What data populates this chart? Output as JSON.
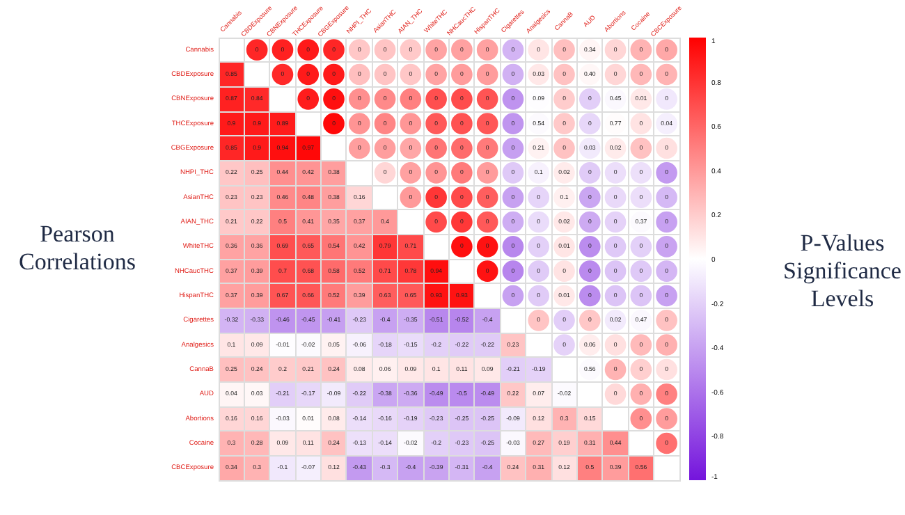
{
  "chart_data": {
    "type": "heatmap",
    "ylabel": "Pearson Correlations",
    "y2label": "P-Values Significance Levels",
    "categories": [
      "Cannabis",
      "CBDExposure",
      "CBNExposure",
      "THCExposure",
      "CBGExposure",
      "NHPI_THC",
      "AsianTHC",
      "AIAN_THC",
      "WhiteTHC",
      "NHCaucTHC",
      "HispanTHC",
      "Cigarettes",
      "Analgesics",
      "CannaB",
      "AUD",
      "Abortions",
      "Cocaine",
      "CBCExposure"
    ],
    "y_categories": [
      "Cannabis",
      "CBDExposure",
      "CBNExposure",
      "THCExposure",
      "CBGExposure",
      "NHPI_THC",
      "AsianTHC",
      "AIAN_THC",
      "WhiteTHC",
      "NHCaucTHC",
      "HispanTHC",
      "Cigarettes",
      "Analgesics",
      "CannaB",
      "AUD",
      "Abortions",
      "Cocaine",
      "CBCExposure"
    ],
    "cells": [
      [
        null,
        0.85,
        0.87,
        0.9,
        0.85,
        0.22,
        0.23,
        0.21,
        0.36,
        0.37,
        0.37,
        -0.32,
        0.1,
        0.25,
        0.04,
        0.16,
        0.3,
        0.34
      ],
      [
        0.85,
        null,
        0.84,
        0.9,
        0.9,
        0.25,
        0.23,
        0.22,
        0.36,
        0.39,
        0.39,
        -0.33,
        0.09,
        0.24,
        0.03,
        0.16,
        0.28,
        0.3
      ],
      [
        0.87,
        0.84,
        null,
        0.89,
        0.94,
        0.44,
        0.46,
        0.5,
        0.69,
        0.7,
        0.67,
        -0.46,
        -0.01,
        0.2,
        -0.21,
        -0.03,
        0.09,
        -0.1
      ],
      [
        0.9,
        0.9,
        0.89,
        null,
        0.97,
        0.42,
        0.48,
        0.41,
        0.65,
        0.68,
        0.66,
        -0.45,
        -0.02,
        0.21,
        -0.17,
        0.01,
        0.11,
        -0.07
      ],
      [
        0.85,
        0.9,
        0.94,
        0.97,
        null,
        0.38,
        0.38,
        0.35,
        0.54,
        0.58,
        0.52,
        -0.41,
        0.05,
        0.24,
        -0.09,
        0.08,
        0.24,
        0.12
      ],
      [
        0.22,
        0.25,
        0.44,
        0.42,
        0.38,
        null,
        0.16,
        0.37,
        0.42,
        0.52,
        0.39,
        -0.23,
        -0.06,
        0.08,
        -0.22,
        -0.14,
        -0.13,
        -0.43
      ],
      [
        0.23,
        0.23,
        0.46,
        0.48,
        0.38,
        0.16,
        null,
        0.4,
        0.79,
        0.71,
        0.63,
        -0.4,
        -0.18,
        0.06,
        -0.38,
        -0.16,
        -0.14,
        -0.3
      ],
      [
        0.21,
        0.22,
        0.5,
        0.41,
        0.35,
        0.37,
        0.4,
        null,
        0.71,
        0.78,
        0.65,
        -0.35,
        -0.15,
        0.09,
        -0.36,
        -0.19,
        -0.02,
        -0.4
      ],
      [
        0.36,
        0.36,
        0.69,
        0.65,
        0.54,
        0.42,
        0.79,
        0.71,
        null,
        0.94,
        0.93,
        -0.51,
        -0.2,
        0.1,
        -0.49,
        -0.23,
        -0.2,
        -0.39
      ],
      [
        0.37,
        0.39,
        0.7,
        0.68,
        0.58,
        0.52,
        0.71,
        0.78,
        0.94,
        null,
        0.93,
        -0.52,
        -0.22,
        0.11,
        -0.5,
        -0.25,
        -0.23,
        -0.31
      ],
      [
        0.37,
        0.39,
        0.67,
        0.66,
        0.52,
        0.39,
        0.63,
        0.65,
        0.93,
        0.93,
        null,
        -0.4,
        -0.22,
        0.09,
        -0.49,
        -0.25,
        -0.25,
        -0.4
      ],
      [
        -0.32,
        -0.33,
        -0.46,
        -0.45,
        -0.41,
        -0.23,
        -0.4,
        -0.35,
        -0.51,
        -0.52,
        -0.4,
        null,
        0.23,
        -0.21,
        0.22,
        -0.09,
        -0.03,
        0.24
      ],
      [
        0.1,
        0.09,
        -0.01,
        -0.02,
        0.05,
        -0.06,
        -0.18,
        -0.15,
        -0.2,
        -0.22,
        -0.22,
        0.23,
        null,
        -0.19,
        0.07,
        0.12,
        0.27,
        0.31
      ],
      [
        0.25,
        0.24,
        0.2,
        0.21,
        0.24,
        0.08,
        0.06,
        0.09,
        0.1,
        0.11,
        0.09,
        -0.21,
        -0.19,
        null,
        -0.02,
        0.3,
        0.19,
        0.12
      ],
      [
        0.04,
        0.03,
        -0.21,
        -0.17,
        -0.09,
        -0.22,
        -0.38,
        -0.36,
        -0.49,
        -0.5,
        -0.49,
        0.22,
        0.07,
        -0.02,
        null,
        0.15,
        0.31,
        0.5
      ],
      [
        0.16,
        0.16,
        -0.03,
        0.01,
        0.08,
        -0.14,
        -0.16,
        -0.19,
        -0.23,
        -0.25,
        -0.25,
        -0.09,
        0.12,
        0.3,
        0.15,
        null,
        0.44,
        0.39
      ],
      [
        0.3,
        0.28,
        0.09,
        0.11,
        0.24,
        -0.13,
        -0.14,
        -0.02,
        -0.2,
        -0.23,
        -0.25,
        -0.03,
        0.27,
        0.19,
        0.31,
        0.44,
        null,
        0.56
      ],
      [
        0.34,
        0.3,
        -0.1,
        -0.07,
        0.12,
        -0.43,
        -0.3,
        -0.4,
        -0.39,
        -0.31,
        -0.4,
        0.24,
        0.31,
        0.12,
        0.5,
        0.39,
        0.56,
        null
      ]
    ],
    "cell_labels": [
      [
        null,
        null,
        null,
        null,
        null,
        null,
        null,
        null,
        null,
        null,
        null,
        null,
        null,
        null,
        null,
        null,
        null,
        null
      ],
      [
        "0.85",
        null,
        null,
        null,
        null,
        null,
        null,
        null,
        null,
        null,
        null,
        null,
        null,
        null,
        null,
        null,
        null,
        null
      ],
      [
        "0.87",
        "0.84",
        null,
        null,
        null,
        null,
        null,
        null,
        null,
        null,
        null,
        null,
        null,
        null,
        null,
        null,
        null,
        null
      ],
      [
        "0.9",
        "0.9",
        "0.89",
        null,
        null,
        null,
        null,
        null,
        null,
        null,
        null,
        null,
        null,
        null,
        null,
        null,
        null,
        null
      ],
      [
        "0.85",
        "0.9",
        "0.94",
        "0.97",
        null,
        null,
        null,
        null,
        null,
        null,
        null,
        null,
        null,
        null,
        null,
        null,
        null,
        null
      ],
      [
        "0.22",
        "0.25",
        "0.44",
        "0.42",
        "0.38",
        null,
        null,
        null,
        null,
        null,
        null,
        null,
        null,
        null,
        null,
        null,
        null,
        null
      ],
      [
        "0.23",
        "0.23",
        "0.46",
        "0.48",
        "0.38",
        "0.16",
        null,
        null,
        null,
        null,
        null,
        null,
        null,
        null,
        null,
        null,
        null,
        null
      ],
      [
        "0.21",
        "0.22",
        "0.5",
        "0.41",
        "0.35",
        "0.37",
        "0.4",
        null,
        null,
        null,
        null,
        null,
        null,
        null,
        null,
        null,
        null,
        null
      ],
      [
        "0.36",
        "0.36",
        "0.69",
        "0.65",
        "0.54",
        "0.42",
        "0.79",
        "0.71",
        null,
        null,
        null,
        null,
        null,
        null,
        null,
        null,
        null,
        null
      ],
      [
        "0.37",
        "0.39",
        "0.7",
        "0.68",
        "0.58",
        "0.52",
        "0.71",
        "0.78",
        "0.94",
        null,
        null,
        null,
        null,
        null,
        null,
        null,
        null,
        null
      ],
      [
        "0.37",
        "0.39",
        "0.67",
        "0.66",
        "0.52",
        "0.39",
        "0.63",
        "0.65",
        "0.93",
        "0.93",
        null,
        null,
        null,
        null,
        null,
        null,
        null,
        null
      ],
      [
        "-0.32",
        "-0.33",
        "-0.46",
        "-0.45",
        "-0.41",
        "-0.23",
        "-0.4",
        "-0.35",
        "-0.51",
        "-0.52",
        "-0.4",
        null,
        null,
        null,
        null,
        null,
        null,
        null
      ],
      [
        "0.1",
        "0.09",
        "-0.01",
        "-0.02",
        "0.05",
        "-0.06",
        "-0.18",
        "-0.15",
        "-0.2",
        "-0.22",
        "-0.22",
        "0.23",
        null,
        null,
        null,
        null,
        null,
        null
      ],
      [
        "0.25",
        "0.24",
        "0.2",
        "0.21",
        "0.24",
        "0.08",
        "0.06",
        "0.09",
        "0.1",
        "0.11",
        "0.09",
        "-0.21",
        "-0.19",
        null,
        null,
        null,
        null,
        null
      ],
      [
        "0.04",
        "0.03",
        "-0.21",
        "-0.17",
        "-0.09",
        "-0.22",
        "-0.38",
        "-0.36",
        "-0.49",
        "-0.5",
        "-0.49",
        "0.22",
        "0.07",
        "-0.02",
        null,
        null,
        null,
        null
      ],
      [
        "0.16",
        "0.16",
        "-0.03",
        "0.01",
        "0.08",
        "-0.14",
        "-0.16",
        "-0.19",
        "-0.23",
        "-0.25",
        "-0.25",
        "-0.09",
        "0.12",
        "0.3",
        "0.15",
        null,
        null,
        null
      ],
      [
        "0.3",
        "0.28",
        "0.09",
        "0.11",
        "0.24",
        "-0.13",
        "-0.14",
        "-0.02",
        "-0.2",
        "-0.23",
        "-0.25",
        "-0.03",
        "0.27",
        "0.19",
        "0.31",
        "0.44",
        null,
        null
      ],
      [
        "0.34",
        "0.3",
        "-0.1",
        "-0.07",
        "0.12",
        "-0.43",
        "-0.3",
        "-0.4",
        "-0.39",
        "-0.31",
        "-0.4",
        "0.24",
        "0.31",
        "0.12",
        "0.5",
        "0.39",
        "0.56",
        null
      ]
    ],
    "annotations": [
      {
        "text": "0",
        "x": "CBDExposure",
        "y": "Cannabis"
      },
      {
        "text": "0",
        "x": "CBNExposure",
        "y": "Cannabis"
      },
      {
        "text": "0",
        "x": "THCExposure",
        "y": "Cannabis"
      },
      {
        "text": "0",
        "x": "CBGExposure",
        "y": "Cannabis"
      },
      {
        "text": "0",
        "x": "NHPI_THC",
        "y": "Cannabis"
      },
      {
        "text": "0",
        "x": "AsianTHC",
        "y": "Cannabis"
      },
      {
        "text": "0",
        "x": "AIAN_THC",
        "y": "Cannabis"
      },
      {
        "text": "0",
        "x": "WhiteTHC",
        "y": "Cannabis"
      },
      {
        "text": "0",
        "x": "NHCaucTHC",
        "y": "Cannabis"
      },
      {
        "text": "0",
        "x": "HispanTHC",
        "y": "Cannabis"
      },
      {
        "text": "0",
        "x": "Cigarettes",
        "y": "Cannabis"
      },
      {
        "text": "0",
        "x": "Analgesics",
        "y": "Cannabis"
      },
      {
        "text": "0",
        "x": "CannaB",
        "y": "Cannabis"
      },
      {
        "text": "0.34",
        "x": "AUD",
        "y": "Cannabis"
      },
      {
        "text": "0",
        "x": "Abortions",
        "y": "Cannabis"
      },
      {
        "text": "0",
        "x": "Cocaine",
        "y": "Cannabis"
      },
      {
        "text": "0",
        "x": "CBCExposure",
        "y": "Cannabis"
      },
      {
        "text": "0",
        "x": "CBNExposure",
        "y": "CBDExposure"
      },
      {
        "text": "0",
        "x": "THCExposure",
        "y": "CBDExposure"
      },
      {
        "text": "0",
        "x": "CBGExposure",
        "y": "CBDExposure"
      },
      {
        "text": "0",
        "x": "NHPI_THC",
        "y": "CBDExposure"
      },
      {
        "text": "0",
        "x": "AsianTHC",
        "y": "CBDExposure"
      },
      {
        "text": "0",
        "x": "AIAN_THC",
        "y": "CBDExposure"
      },
      {
        "text": "0",
        "x": "WhiteTHC",
        "y": "CBDExposure"
      },
      {
        "text": "0",
        "x": "NHCaucTHC",
        "y": "CBDExposure"
      },
      {
        "text": "0",
        "x": "HispanTHC",
        "y": "CBDExposure"
      },
      {
        "text": "0",
        "x": "Cigarettes",
        "y": "CBDExposure"
      },
      {
        "text": "0.03",
        "x": "Analgesics",
        "y": "CBDExposure"
      },
      {
        "text": "0",
        "x": "CannaB",
        "y": "CBDExposure"
      },
      {
        "text": "0.40",
        "x": "AUD",
        "y": "CBDExposure"
      },
      {
        "text": "0",
        "x": "Abortions",
        "y": "CBDExposure"
      },
      {
        "text": "0",
        "x": "Cocaine",
        "y": "CBDExposure"
      },
      {
        "text": "0",
        "x": "CBCExposure",
        "y": "CBDExposure"
      },
      {
        "text": "0",
        "x": "THCExposure",
        "y": "CBNExposure"
      },
      {
        "text": "0",
        "x": "CBGExposure",
        "y": "CBNExposure"
      },
      {
        "text": "0",
        "x": "NHPI_THC",
        "y": "CBNExposure"
      },
      {
        "text": "0",
        "x": "AsianTHC",
        "y": "CBNExposure"
      },
      {
        "text": "0",
        "x": "AIAN_THC",
        "y": "CBNExposure"
      },
      {
        "text": "0",
        "x": "WhiteTHC",
        "y": "CBNExposure"
      },
      {
        "text": "0",
        "x": "NHCaucTHC",
        "y": "CBNExposure"
      },
      {
        "text": "0",
        "x": "HispanTHC",
        "y": "CBNExposure"
      },
      {
        "text": "0",
        "x": "Cigarettes",
        "y": "CBNExposure"
      },
      {
        "text": "0.09",
        "x": "Analgesics",
        "y": "CBNExposure"
      },
      {
        "text": "0",
        "x": "CannaB",
        "y": "CBNExposure"
      },
      {
        "text": "0",
        "x": "AUD",
        "y": "CBNExposure"
      },
      {
        "text": "0.45",
        "x": "Abortions",
        "y": "CBNExposure"
      },
      {
        "text": "0.01",
        "x": "Cocaine",
        "y": "CBNExposure"
      },
      {
        "text": "0",
        "x": "CBCExposure",
        "y": "CBNExposure"
      },
      {
        "text": "0",
        "x": "CBGExposure",
        "y": "THCExposure"
      },
      {
        "text": "0",
        "x": "NHPI_THC",
        "y": "THCExposure"
      },
      {
        "text": "0",
        "x": "AsianTHC",
        "y": "THCExposure"
      },
      {
        "text": "0",
        "x": "AIAN_THC",
        "y": "THCExposure"
      },
      {
        "text": "0",
        "x": "WhiteTHC",
        "y": "THCExposure"
      },
      {
        "text": "0",
        "x": "NHCaucTHC",
        "y": "THCExposure"
      },
      {
        "text": "0",
        "x": "HispanTHC",
        "y": "THCExposure"
      },
      {
        "text": "0",
        "x": "Cigarettes",
        "y": "THCExposure"
      },
      {
        "text": "0.54",
        "x": "Analgesics",
        "y": "THCExposure"
      },
      {
        "text": "0",
        "x": "CannaB",
        "y": "THCExposure"
      },
      {
        "text": "0",
        "x": "AUD",
        "y": "THCExposure"
      },
      {
        "text": "0.77",
        "x": "Abortions",
        "y": "THCExposure"
      },
      {
        "text": "0",
        "x": "Cocaine",
        "y": "THCExposure"
      },
      {
        "text": "0.04",
        "x": "CBCExposure",
        "y": "THCExposure"
      },
      {
        "text": "0",
        "x": "NHPI_THC",
        "y": "CBGExposure"
      },
      {
        "text": "0",
        "x": "AsianTHC",
        "y": "CBGExposure"
      },
      {
        "text": "0",
        "x": "AIAN_THC",
        "y": "CBGExposure"
      },
      {
        "text": "0",
        "x": "WhiteTHC",
        "y": "CBGExposure"
      },
      {
        "text": "0",
        "x": "NHCaucTHC",
        "y": "CBGExposure"
      },
      {
        "text": "0",
        "x": "HispanTHC",
        "y": "CBGExposure"
      },
      {
        "text": "0",
        "x": "Cigarettes",
        "y": "CBGExposure"
      },
      {
        "text": "0.21",
        "x": "Analgesics",
        "y": "CBGExposure"
      },
      {
        "text": "0",
        "x": "CannaB",
        "y": "CBGExposure"
      },
      {
        "text": "0.03",
        "x": "AUD",
        "y": "CBGExposure"
      },
      {
        "text": "0.02",
        "x": "Abortions",
        "y": "CBGExposure"
      },
      {
        "text": "0",
        "x": "Cocaine",
        "y": "CBGExposure"
      },
      {
        "text": "0",
        "x": "CBCExposure",
        "y": "CBGExposure"
      },
      {
        "text": "0",
        "x": "AsianTHC",
        "y": "NHPI_THC"
      },
      {
        "text": "0",
        "x": "AIAN_THC",
        "y": "NHPI_THC"
      },
      {
        "text": "0",
        "x": "WhiteTHC",
        "y": "NHPI_THC"
      },
      {
        "text": "0",
        "x": "NHCaucTHC",
        "y": "NHPI_THC"
      },
      {
        "text": "0",
        "x": "HispanTHC",
        "y": "NHPI_THC"
      },
      {
        "text": "0",
        "x": "Cigarettes",
        "y": "NHPI_THC"
      },
      {
        "text": "0.1",
        "x": "Analgesics",
        "y": "NHPI_THC"
      },
      {
        "text": "0.02",
        "x": "CannaB",
        "y": "NHPI_THC"
      },
      {
        "text": "0",
        "x": "AUD",
        "y": "NHPI_THC"
      },
      {
        "text": "0",
        "x": "Abortions",
        "y": "NHPI_THC"
      },
      {
        "text": "0",
        "x": "Cocaine",
        "y": "NHPI_THC"
      },
      {
        "text": "0",
        "x": "CBCExposure",
        "y": "NHPI_THC"
      },
      {
        "text": "0",
        "x": "AIAN_THC",
        "y": "AsianTHC"
      },
      {
        "text": "0",
        "x": "WhiteTHC",
        "y": "AsianTHC"
      },
      {
        "text": "0",
        "x": "NHCaucTHC",
        "y": "AsianTHC"
      },
      {
        "text": "0",
        "x": "HispanTHC",
        "y": "AsianTHC"
      },
      {
        "text": "0",
        "x": "Cigarettes",
        "y": "AsianTHC"
      },
      {
        "text": "0",
        "x": "Analgesics",
        "y": "AsianTHC"
      },
      {
        "text": "0.1",
        "x": "CannaB",
        "y": "AsianTHC"
      },
      {
        "text": "0",
        "x": "AUD",
        "y": "AsianTHC"
      },
      {
        "text": "0",
        "x": "Abortions",
        "y": "AsianTHC"
      },
      {
        "text": "0",
        "x": "Cocaine",
        "y": "AsianTHC"
      },
      {
        "text": "0",
        "x": "CBCExposure",
        "y": "AsianTHC"
      },
      {
        "text": "0",
        "x": "WhiteTHC",
        "y": "AIAN_THC"
      },
      {
        "text": "0",
        "x": "NHCaucTHC",
        "y": "AIAN_THC"
      },
      {
        "text": "0",
        "x": "HispanTHC",
        "y": "AIAN_THC"
      },
      {
        "text": "0",
        "x": "Cigarettes",
        "y": "AIAN_THC"
      },
      {
        "text": "0",
        "x": "Analgesics",
        "y": "AIAN_THC"
      },
      {
        "text": "0.02",
        "x": "CannaB",
        "y": "AIAN_THC"
      },
      {
        "text": "0",
        "x": "AUD",
        "y": "AIAN_THC"
      },
      {
        "text": "0",
        "x": "Abortions",
        "y": "AIAN_THC"
      },
      {
        "text": "0.37",
        "x": "Cocaine",
        "y": "AIAN_THC"
      },
      {
        "text": "0",
        "x": "CBCExposure",
        "y": "AIAN_THC"
      },
      {
        "text": "0",
        "x": "NHCaucTHC",
        "y": "WhiteTHC"
      },
      {
        "text": "0",
        "x": "HispanTHC",
        "y": "WhiteTHC"
      },
      {
        "text": "0",
        "x": "Cigarettes",
        "y": "WhiteTHC"
      },
      {
        "text": "0",
        "x": "Analgesics",
        "y": "WhiteTHC"
      },
      {
        "text": "0.01",
        "x": "CannaB",
        "y": "WhiteTHC"
      },
      {
        "text": "0",
        "x": "AUD",
        "y": "WhiteTHC"
      },
      {
        "text": "0",
        "x": "Abortions",
        "y": "WhiteTHC"
      },
      {
        "text": "0",
        "x": "Cocaine",
        "y": "WhiteTHC"
      },
      {
        "text": "0",
        "x": "CBCExposure",
        "y": "WhiteTHC"
      },
      {
        "text": "0",
        "x": "HispanTHC",
        "y": "NHCaucTHC"
      },
      {
        "text": "0",
        "x": "Cigarettes",
        "y": "NHCaucTHC"
      },
      {
        "text": "0",
        "x": "Analgesics",
        "y": "NHCaucTHC"
      },
      {
        "text": "0",
        "x": "CannaB",
        "y": "NHCaucTHC"
      },
      {
        "text": "0",
        "x": "AUD",
        "y": "NHCaucTHC"
      },
      {
        "text": "0",
        "x": "Abortions",
        "y": "NHCaucTHC"
      },
      {
        "text": "0",
        "x": "Cocaine",
        "y": "NHCaucTHC"
      },
      {
        "text": "0",
        "x": "CBCExposure",
        "y": "NHCaucTHC"
      },
      {
        "text": "0",
        "x": "Cigarettes",
        "y": "HispanTHC"
      },
      {
        "text": "0",
        "x": "Analgesics",
        "y": "HispanTHC"
      },
      {
        "text": "0.01",
        "x": "CannaB",
        "y": "HispanTHC"
      },
      {
        "text": "0",
        "x": "AUD",
        "y": "HispanTHC"
      },
      {
        "text": "0",
        "x": "Abortions",
        "y": "HispanTHC"
      },
      {
        "text": "0",
        "x": "Cocaine",
        "y": "HispanTHC"
      },
      {
        "text": "0",
        "x": "CBCExposure",
        "y": "HispanTHC"
      },
      {
        "text": "0",
        "x": "Analgesics",
        "y": "Cigarettes"
      },
      {
        "text": "0",
        "x": "CannaB",
        "y": "Cigarettes"
      },
      {
        "text": "0",
        "x": "AUD",
        "y": "Cigarettes"
      },
      {
        "text": "0.02",
        "x": "Abortions",
        "y": "Cigarettes"
      },
      {
        "text": "0.47",
        "x": "Cocaine",
        "y": "Cigarettes"
      },
      {
        "text": "0",
        "x": "CBCExposure",
        "y": "Cigarettes"
      },
      {
        "text": "0",
        "x": "CannaB",
        "y": "Analgesics"
      },
      {
        "text": "0.06",
        "x": "AUD",
        "y": "Analgesics"
      },
      {
        "text": "0",
        "x": "Abortions",
        "y": "Analgesics"
      },
      {
        "text": "0",
        "x": "Cocaine",
        "y": "Analgesics"
      },
      {
        "text": "0",
        "x": "CBCExposure",
        "y": "Analgesics"
      },
      {
        "text": "0.56",
        "x": "AUD",
        "y": "CannaB"
      },
      {
        "text": "0",
        "x": "Abortions",
        "y": "CannaB"
      },
      {
        "text": "0",
        "x": "Cocaine",
        "y": "CannaB"
      },
      {
        "text": "0",
        "x": "CBCExposure",
        "y": "CannaB"
      },
      {
        "text": "0",
        "x": "Abortions",
        "y": "AUD"
      },
      {
        "text": "0",
        "x": "Cocaine",
        "y": "AUD"
      },
      {
        "text": "0",
        "x": "CBCExposure",
        "y": "AUD"
      },
      {
        "text": "0",
        "x": "Cocaine",
        "y": "Abortions"
      },
      {
        "text": "0",
        "x": "CBCExposure",
        "y": "Abortions"
      },
      {
        "text": "0",
        "x": "CBCExposure",
        "y": "Cocaine"
      }
    ],
    "clim": [
      -1,
      1
    ],
    "cticks": [
      -1,
      -0.8,
      -0.6,
      -0.4,
      -0.2,
      0,
      0.2,
      0.4,
      0.6,
      0.8,
      1
    ],
    "grid": true
  }
}
